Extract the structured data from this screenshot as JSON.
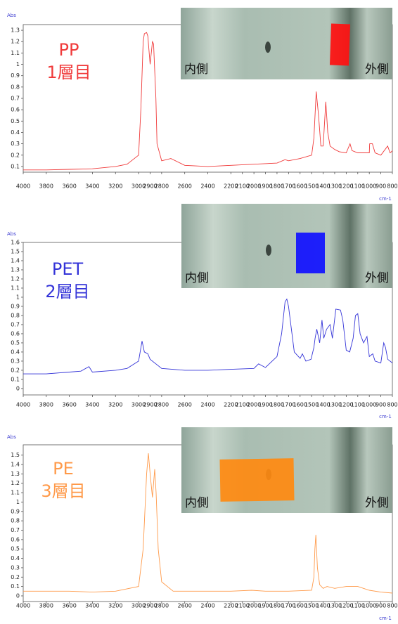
{
  "chart_data": [
    {
      "type": "line",
      "y_label": "Abs",
      "x_label": "cm-1",
      "label_lines": [
        "PP",
        "1層目"
      ],
      "inset_labels": [
        "内側",
        "外側"
      ],
      "xlim": [
        4000,
        800
      ],
      "ylim": [
        0.05,
        1.35
      ],
      "xticks": [
        4000,
        3800,
        3600,
        3400,
        3200,
        3000,
        2900,
        2800,
        2600,
        2400,
        2200,
        2100,
        2000,
        1900,
        1800,
        1700,
        1600,
        1500,
        1400,
        1300,
        1200,
        1100,
        1000,
        900,
        800
      ],
      "yticks": [
        0.1,
        0.2,
        0.3,
        0.4,
        0.5,
        0.6,
        0.7,
        0.8,
        0.9,
        1,
        1.1,
        1.2,
        1.3
      ],
      "series": [
        {
          "color": "#f03a3a",
          "x": [
            4000,
            3800,
            3600,
            3400,
            3200,
            3100,
            3000,
            2980,
            2960,
            2950,
            2930,
            2920,
            2900,
            2880,
            2870,
            2850,
            2840,
            2800,
            2720,
            2600,
            2400,
            2200,
            2000,
            1800,
            1730,
            1700,
            1600,
            1500,
            1480,
            1460,
            1440,
            1420,
            1400,
            1377,
            1360,
            1340,
            1300,
            1260,
            1200,
            1167,
            1150,
            1100,
            1000,
            997,
            973,
            950,
            900,
            841,
            820,
            808,
            800
          ],
          "values": [
            0.07,
            0.07,
            0.075,
            0.08,
            0.1,
            0.12,
            0.2,
            0.6,
            1.2,
            1.27,
            1.28,
            1.25,
            1.0,
            1.2,
            1.18,
            0.7,
            0.3,
            0.15,
            0.17,
            0.11,
            0.1,
            0.11,
            0.12,
            0.13,
            0.16,
            0.15,
            0.17,
            0.2,
            0.35,
            0.76,
            0.55,
            0.28,
            0.28,
            0.67,
            0.4,
            0.28,
            0.25,
            0.23,
            0.22,
            0.3,
            0.24,
            0.22,
            0.22,
            0.3,
            0.3,
            0.22,
            0.2,
            0.28,
            0.22,
            0.23,
            0.24
          ]
        }
      ]
    },
    {
      "type": "line",
      "y_label": "Abs",
      "x_label": "cm-1",
      "label_lines": [
        "PET",
        "2層目"
      ],
      "inset_labels": [
        "内側",
        "外側"
      ],
      "xlim": [
        4000,
        800
      ],
      "ylim": [
        -0.07,
        1.6
      ],
      "xticks": [
        4000,
        3800,
        3600,
        3400,
        3200,
        3000,
        2900,
        2800,
        2600,
        2400,
        2200,
        2100,
        2000,
        1900,
        1800,
        1700,
        1600,
        1500,
        1400,
        1300,
        1200,
        1100,
        1000,
        900,
        800
      ],
      "yticks": [
        0,
        0.1,
        0.2,
        0.3,
        0.4,
        0.5,
        0.6,
        0.7,
        0.8,
        0.9,
        1,
        1.1,
        1.2,
        1.3,
        1.4,
        1.5,
        1.6
      ],
      "series": [
        {
          "color": "#3434d8",
          "x": [
            4000,
            3800,
            3600,
            3500,
            3430,
            3400,
            3200,
            3100,
            3000,
            2970,
            2950,
            2920,
            2900,
            2800,
            2600,
            2400,
            2200,
            2000,
            1960,
            1900,
            1800,
            1760,
            1730,
            1715,
            1700,
            1650,
            1600,
            1580,
            1550,
            1505,
            1480,
            1470,
            1455,
            1430,
            1410,
            1395,
            1370,
            1340,
            1320,
            1290,
            1250,
            1230,
            1200,
            1170,
            1140,
            1120,
            1100,
            1080,
            1050,
            1020,
            1000,
            970,
            950,
            900,
            875,
            860,
            840,
            800
          ],
          "values": [
            0.16,
            0.16,
            0.18,
            0.19,
            0.24,
            0.18,
            0.2,
            0.22,
            0.3,
            0.52,
            0.4,
            0.38,
            0.32,
            0.22,
            0.2,
            0.2,
            0.21,
            0.22,
            0.27,
            0.23,
            0.35,
            0.6,
            0.95,
            0.98,
            0.9,
            0.4,
            0.33,
            0.38,
            0.3,
            0.32,
            0.45,
            0.55,
            0.65,
            0.5,
            0.75,
            0.55,
            0.65,
            0.7,
            0.55,
            0.87,
            0.86,
            0.75,
            0.42,
            0.4,
            0.55,
            0.8,
            0.82,
            0.6,
            0.5,
            0.57,
            0.35,
            0.38,
            0.3,
            0.28,
            0.5,
            0.45,
            0.32,
            0.28
          ]
        }
      ]
    },
    {
      "type": "line",
      "y_label": "Abs",
      "x_label": "cm-1",
      "label_lines": [
        "PE",
        "3層目"
      ],
      "inset_labels": [
        "内側",
        "外側"
      ],
      "xlim": [
        4000,
        800
      ],
      "ylim": [
        -0.06,
        1.61
      ],
      "xticks": [
        4000,
        3800,
        3600,
        3400,
        3200,
        3000,
        2900,
        2800,
        2600,
        2400,
        2200,
        2100,
        2000,
        1900,
        1800,
        1700,
        1600,
        1500,
        1400,
        1300,
        1200,
        1100,
        1000,
        900,
        800
      ],
      "yticks": [
        0,
        0.1,
        0.2,
        0.3,
        0.4,
        0.5,
        0.6,
        0.7,
        0.8,
        0.9,
        1,
        1.1,
        1.2,
        1.3,
        1.4,
        1.5
      ],
      "series": [
        {
          "color": "#ff9a4a",
          "x": [
            4000,
            3600,
            3400,
            3200,
            3000,
            2960,
            2930,
            2915,
            2900,
            2880,
            2860,
            2848,
            2830,
            2800,
            2700,
            2400,
            2200,
            2020,
            1900,
            1700,
            1500,
            1480,
            1472,
            1463,
            1450,
            1430,
            1400,
            1366,
            1300,
            1200,
            1100,
            1000,
            900,
            800
          ],
          "values": [
            0.05,
            0.05,
            0.04,
            0.05,
            0.1,
            0.5,
            1.3,
            1.52,
            1.3,
            1.05,
            1.35,
            1.1,
            0.5,
            0.15,
            0.05,
            0.05,
            0.05,
            0.06,
            0.05,
            0.05,
            0.06,
            0.2,
            0.5,
            0.65,
            0.3,
            0.12,
            0.08,
            0.1,
            0.08,
            0.1,
            0.1,
            0.06,
            0.04,
            0.03
          ]
        }
      ]
    }
  ]
}
